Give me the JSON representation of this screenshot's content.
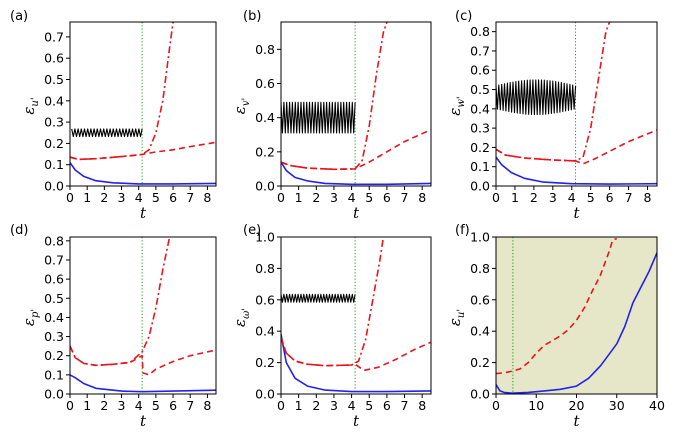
{
  "chart_data": [
    {
      "type": "line",
      "panel_label": "(a)",
      "xlabel": "t",
      "ylabel": "ε",
      "ylabel_sub": "u'",
      "xlim": [
        0,
        8.5
      ],
      "ylim": [
        0,
        0.77
      ],
      "xticks": [
        "0",
        "1",
        "2",
        "3",
        "4",
        "5",
        "6",
        "7",
        "8"
      ],
      "yticks": [
        "0.0",
        "0.1",
        "0.2",
        "0.3",
        "0.4",
        "0.5",
        "0.6",
        "0.7"
      ],
      "vline_t": 4.2,
      "series": [
        {
          "name": "black-oscillating",
          "values_desc": "oscillating around 0.25, amplitude 0.02, t=0.1 to 4.2"
        },
        {
          "name": "blue",
          "x": [
            0,
            0.3,
            0.8,
            1.5,
            2.5,
            4,
            6,
            8.5
          ],
          "y": [
            0.11,
            0.075,
            0.045,
            0.025,
            0.015,
            0.01,
            0.01,
            0.012
          ]
        },
        {
          "name": "red-dashed",
          "x": [
            0,
            0.5,
            1.5,
            3,
            4.2,
            5,
            6,
            7,
            8.5
          ],
          "y": [
            0.135,
            0.125,
            0.128,
            0.138,
            0.148,
            0.16,
            0.17,
            0.185,
            0.205
          ]
        },
        {
          "name": "red-dashdot",
          "x": [
            0,
            0.5,
            1.5,
            3,
            4.2,
            4.6,
            5,
            5.4,
            5.8,
            6.0
          ],
          "y": [
            0.135,
            0.125,
            0.128,
            0.138,
            0.148,
            0.17,
            0.25,
            0.4,
            0.65,
            0.77
          ]
        }
      ]
    },
    {
      "type": "line",
      "panel_label": "(b)",
      "xlabel": "t",
      "ylabel": "ε",
      "ylabel_sub": "v'",
      "xlim": [
        0,
        8.5
      ],
      "ylim": [
        0,
        0.96
      ],
      "xticks": [
        "0",
        "1",
        "2",
        "3",
        "4",
        "5",
        "6",
        "7",
        "8"
      ],
      "yticks": [
        "0.0",
        "0.2",
        "0.4",
        "0.6",
        "0.8"
      ],
      "vline_t": 4.2,
      "series": [
        {
          "name": "black-oscillating",
          "values_desc": "oscillating around 0.4, amplitude 0.09, t=0 to 4.2"
        },
        {
          "name": "blue",
          "x": [
            0,
            0.3,
            0.8,
            1.5,
            2.5,
            4,
            6,
            8.5
          ],
          "y": [
            0.14,
            0.09,
            0.05,
            0.03,
            0.015,
            0.01,
            0.01,
            0.015
          ]
        },
        {
          "name": "red-dashed",
          "x": [
            0,
            0.5,
            1.5,
            3,
            4.2,
            5,
            6,
            7,
            8.5
          ],
          "y": [
            0.14,
            0.12,
            0.105,
            0.098,
            0.1,
            0.14,
            0.2,
            0.26,
            0.33
          ]
        },
        {
          "name": "red-dashdot",
          "x": [
            0,
            0.5,
            1.5,
            3,
            4.2,
            4.6,
            5,
            5.4,
            5.8,
            6.0
          ],
          "y": [
            0.14,
            0.12,
            0.105,
            0.098,
            0.1,
            0.15,
            0.35,
            0.65,
            0.9,
            0.96
          ]
        }
      ]
    },
    {
      "type": "line",
      "panel_label": "(c)",
      "xlabel": "t",
      "ylabel": "ε",
      "ylabel_sub": "w'",
      "xlim": [
        0,
        8.5
      ],
      "ylim": [
        0,
        0.85
      ],
      "xticks": [
        "0",
        "1",
        "2",
        "3",
        "4",
        "5",
        "6",
        "7",
        "8"
      ],
      "yticks": [
        "0.0",
        "0.1",
        "0.2",
        "0.3",
        "0.4",
        "0.5",
        "0.6",
        "0.7",
        "0.8"
      ],
      "vline_t": 4.2,
      "series": [
        {
          "name": "black-oscillating",
          "values_desc": "oscillating around 0.46, amplitude growing to 0.08, t=0 to 4.2"
        },
        {
          "name": "blue",
          "x": [
            0,
            0.3,
            0.8,
            1.5,
            2.5,
            4,
            6,
            8.5
          ],
          "y": [
            0.15,
            0.11,
            0.07,
            0.04,
            0.02,
            0.012,
            0.01,
            0.012
          ]
        },
        {
          "name": "red-dashed",
          "x": [
            0,
            0.5,
            1.5,
            3,
            4.2,
            4.6,
            5.2,
            6,
            7,
            8.5
          ],
          "y": [
            0.19,
            0.16,
            0.145,
            0.135,
            0.13,
            0.115,
            0.14,
            0.18,
            0.23,
            0.29
          ]
        },
        {
          "name": "red-dashdot",
          "x": [
            0,
            0.5,
            1.5,
            3,
            4.2,
            4.6,
            5,
            5.4,
            5.8,
            6.0
          ],
          "y": [
            0.19,
            0.16,
            0.145,
            0.135,
            0.13,
            0.15,
            0.3,
            0.55,
            0.8,
            0.85
          ]
        }
      ]
    },
    {
      "type": "line",
      "panel_label": "(d)",
      "xlabel": "t",
      "ylabel": "ε",
      "ylabel_sub": "p'",
      "xlim": [
        0,
        8.5
      ],
      "ylim": [
        0,
        0.82
      ],
      "xticks": [
        "0",
        "1",
        "2",
        "3",
        "4",
        "5",
        "6",
        "7",
        "8"
      ],
      "yticks": [
        "0.0",
        "0.1",
        "0.2",
        "0.3",
        "0.4",
        "0.5",
        "0.6",
        "0.7",
        "0.8"
      ],
      "vline_t": 4.2,
      "series": [
        {
          "name": "blue",
          "x": [
            0,
            0.3,
            0.8,
            1.5,
            3,
            4.2,
            6,
            8.5
          ],
          "y": [
            0.1,
            0.085,
            0.055,
            0.03,
            0.015,
            0.012,
            0.015,
            0.02
          ]
        },
        {
          "name": "red-dashed",
          "x": [
            0,
            0.3,
            0.8,
            1.5,
            2.5,
            3.5,
            4.2,
            4.25,
            4.6,
            5,
            6,
            7,
            8.5
          ],
          "y": [
            0.25,
            0.19,
            0.16,
            0.15,
            0.155,
            0.165,
            0.2,
            0.11,
            0.1,
            0.13,
            0.17,
            0.2,
            0.23
          ]
        },
        {
          "name": "red-dashdot",
          "x": [
            0,
            0.3,
            0.8,
            1.5,
            2.5,
            3.5,
            4.2,
            4.6,
            5,
            5.4,
            5.8
          ],
          "y": [
            0.25,
            0.19,
            0.16,
            0.15,
            0.155,
            0.165,
            0.22,
            0.3,
            0.45,
            0.65,
            0.82
          ]
        }
      ]
    },
    {
      "type": "line",
      "panel_label": "(e)",
      "xlabel": "t",
      "ylabel": "ε",
      "ylabel_sub": "ω'",
      "xlim": [
        0,
        8.5
      ],
      "ylim": [
        0,
        1.0
      ],
      "xticks": [
        "0",
        "1",
        "2",
        "3",
        "4",
        "5",
        "6",
        "7",
        "8"
      ],
      "yticks": [
        "0.0",
        "0.2",
        "0.4",
        "0.6",
        "0.8",
        "1.0"
      ],
      "vline_t": 4.2,
      "series": [
        {
          "name": "black-oscillating",
          "values_desc": "oscillating around 0.61, amplitude 0.025, t=0 to 4.2"
        },
        {
          "name": "blue",
          "x": [
            0,
            0.3,
            0.8,
            1.5,
            2.5,
            4,
            6,
            8.5
          ],
          "y": [
            0.38,
            0.2,
            0.1,
            0.05,
            0.025,
            0.015,
            0.015,
            0.02
          ]
        },
        {
          "name": "red-dashed",
          "x": [
            0,
            0.3,
            0.8,
            1.5,
            2.5,
            4,
            4.2,
            4.7,
            5.5,
            6.5,
            7.5,
            8.5
          ],
          "y": [
            0.36,
            0.26,
            0.21,
            0.19,
            0.18,
            0.185,
            0.19,
            0.15,
            0.17,
            0.22,
            0.28,
            0.33
          ]
        },
        {
          "name": "red-dashdot",
          "x": [
            0,
            0.3,
            0.8,
            1.5,
            2.5,
            4,
            4.4,
            4.8,
            5.2,
            5.6,
            5.8
          ],
          "y": [
            0.36,
            0.26,
            0.21,
            0.19,
            0.18,
            0.185,
            0.21,
            0.35,
            0.6,
            0.85,
            1.0
          ]
        }
      ]
    },
    {
      "type": "line",
      "panel_label": "(f)",
      "xlabel": "t",
      "ylabel": "ε",
      "ylabel_sub": "u'",
      "xlim": [
        0,
        40
      ],
      "ylim": [
        0,
        1.0
      ],
      "xticks": [
        "0",
        "10",
        "20",
        "30",
        "40"
      ],
      "yticks": [
        "0.0",
        "0.2",
        "0.4",
        "0.6",
        "0.8",
        "1.0"
      ],
      "vline_t": 4.2,
      "background": "#e6e6c8",
      "series": [
        {
          "name": "blue",
          "x": [
            0,
            1,
            2,
            4,
            8,
            12,
            16,
            20,
            23,
            26,
            28,
            30,
            32,
            34,
            36,
            38,
            40
          ],
          "y": [
            0.06,
            0.02,
            0.01,
            0.005,
            0.01,
            0.02,
            0.03,
            0.05,
            0.1,
            0.18,
            0.25,
            0.32,
            0.43,
            0.58,
            0.68,
            0.78,
            0.9
          ]
        },
        {
          "name": "red-dashed",
          "x": [
            0,
            2,
            4,
            6,
            8,
            10,
            12,
            14,
            16,
            18,
            20,
            22,
            24,
            26,
            28,
            29,
            30
          ],
          "y": [
            0.13,
            0.135,
            0.145,
            0.16,
            0.2,
            0.26,
            0.31,
            0.34,
            0.37,
            0.41,
            0.47,
            0.55,
            0.66,
            0.76,
            0.9,
            0.98,
            0.99
          ]
        }
      ]
    }
  ]
}
